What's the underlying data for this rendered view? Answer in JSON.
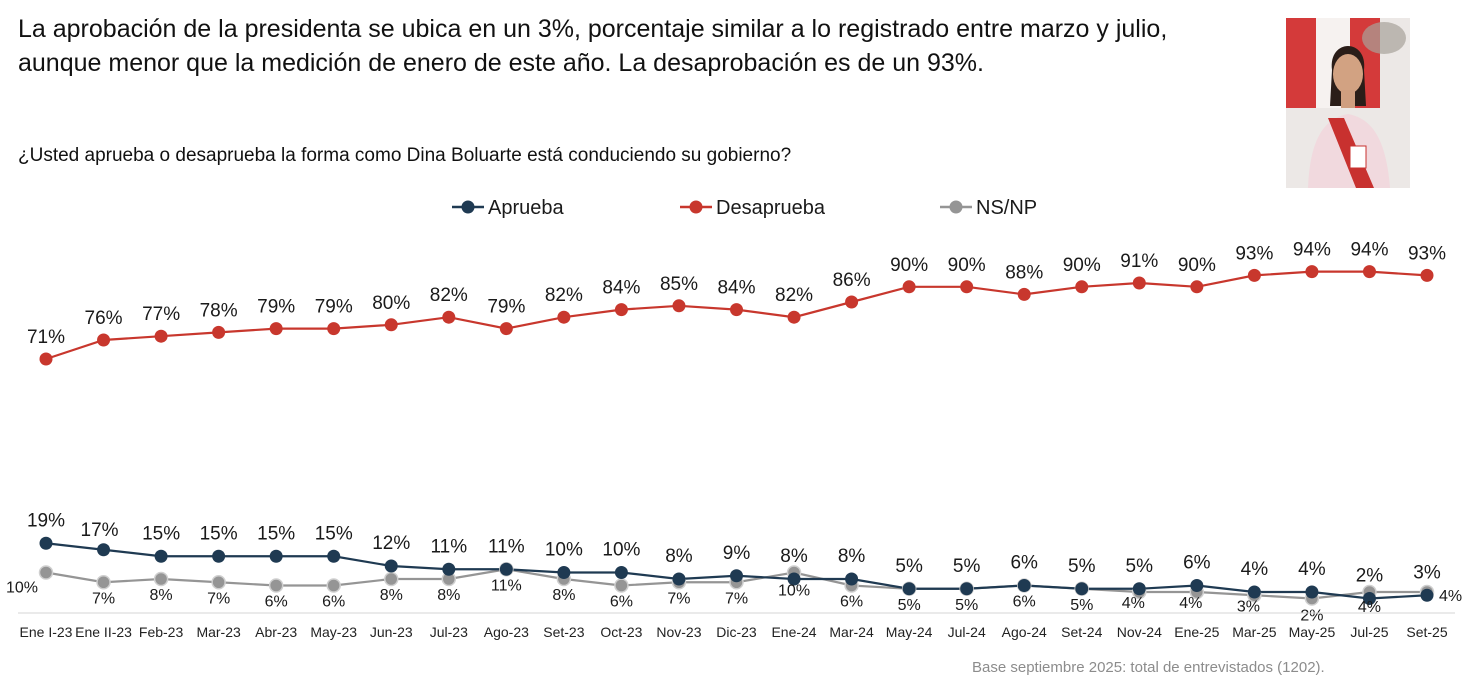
{
  "headline": "La aprobación de la presidenta se ubica en un 3%, porcentaje similar a lo registrado entre marzo y julio, aunque menor que la medición de enero de este año. La desaprobación es de un 93%.",
  "question": "¿Usted aprueba o desaprueba la forma como Dina Boluarte está conduciendo su gobierno?",
  "footnote": "Base septiembre 2025: total de entrevistados (1202).",
  "chart_data": {
    "type": "line",
    "title": "¿Usted aprueba o desaprueba la forma como Dina Boluarte está conduciendo su gobierno?",
    "xlabel": "",
    "ylabel": "",
    "ylim": [
      0,
      100
    ],
    "legend_position": "top-center",
    "grid": false,
    "categories": [
      "Ene I-23",
      "Ene II-23",
      "Feb-23",
      "Mar-23",
      "Abr-23",
      "May-23",
      "Jun-23",
      "Jul-23",
      "Ago-23",
      "Set-23",
      "Oct-23",
      "Nov-23",
      "Dic-23",
      "Ene-24",
      "Mar-24",
      "May-24",
      "Jul-24",
      "Ago-24",
      "Set-24",
      "Nov-24",
      "Ene-25",
      "Mar-25",
      "May-25",
      "Jul-25",
      "Set-25"
    ],
    "series": [
      {
        "name": "Aprueba",
        "color": "#1f3a52",
        "values": [
          19,
          17,
          15,
          15,
          15,
          15,
          12,
          11,
          11,
          10,
          10,
          8,
          9,
          8,
          8,
          5,
          5,
          6,
          5,
          5,
          6,
          4,
          4,
          2,
          3
        ]
      },
      {
        "name": "Desaprueba",
        "color": "#c8372d",
        "values": [
          71,
          76,
          77,
          78,
          79,
          79,
          80,
          82,
          79,
          82,
          84,
          85,
          84,
          82,
          86,
          90,
          90,
          88,
          90,
          91,
          90,
          93,
          94,
          94,
          93
        ]
      },
      {
        "name": "NS/NP",
        "color": "#959595",
        "values": [
          10,
          7,
          8,
          7,
          6,
          6,
          8,
          8,
          11,
          8,
          6,
          7,
          7,
          10,
          6,
          5,
          5,
          6,
          5,
          4,
          4,
          3,
          2,
          4,
          4
        ]
      }
    ]
  }
}
